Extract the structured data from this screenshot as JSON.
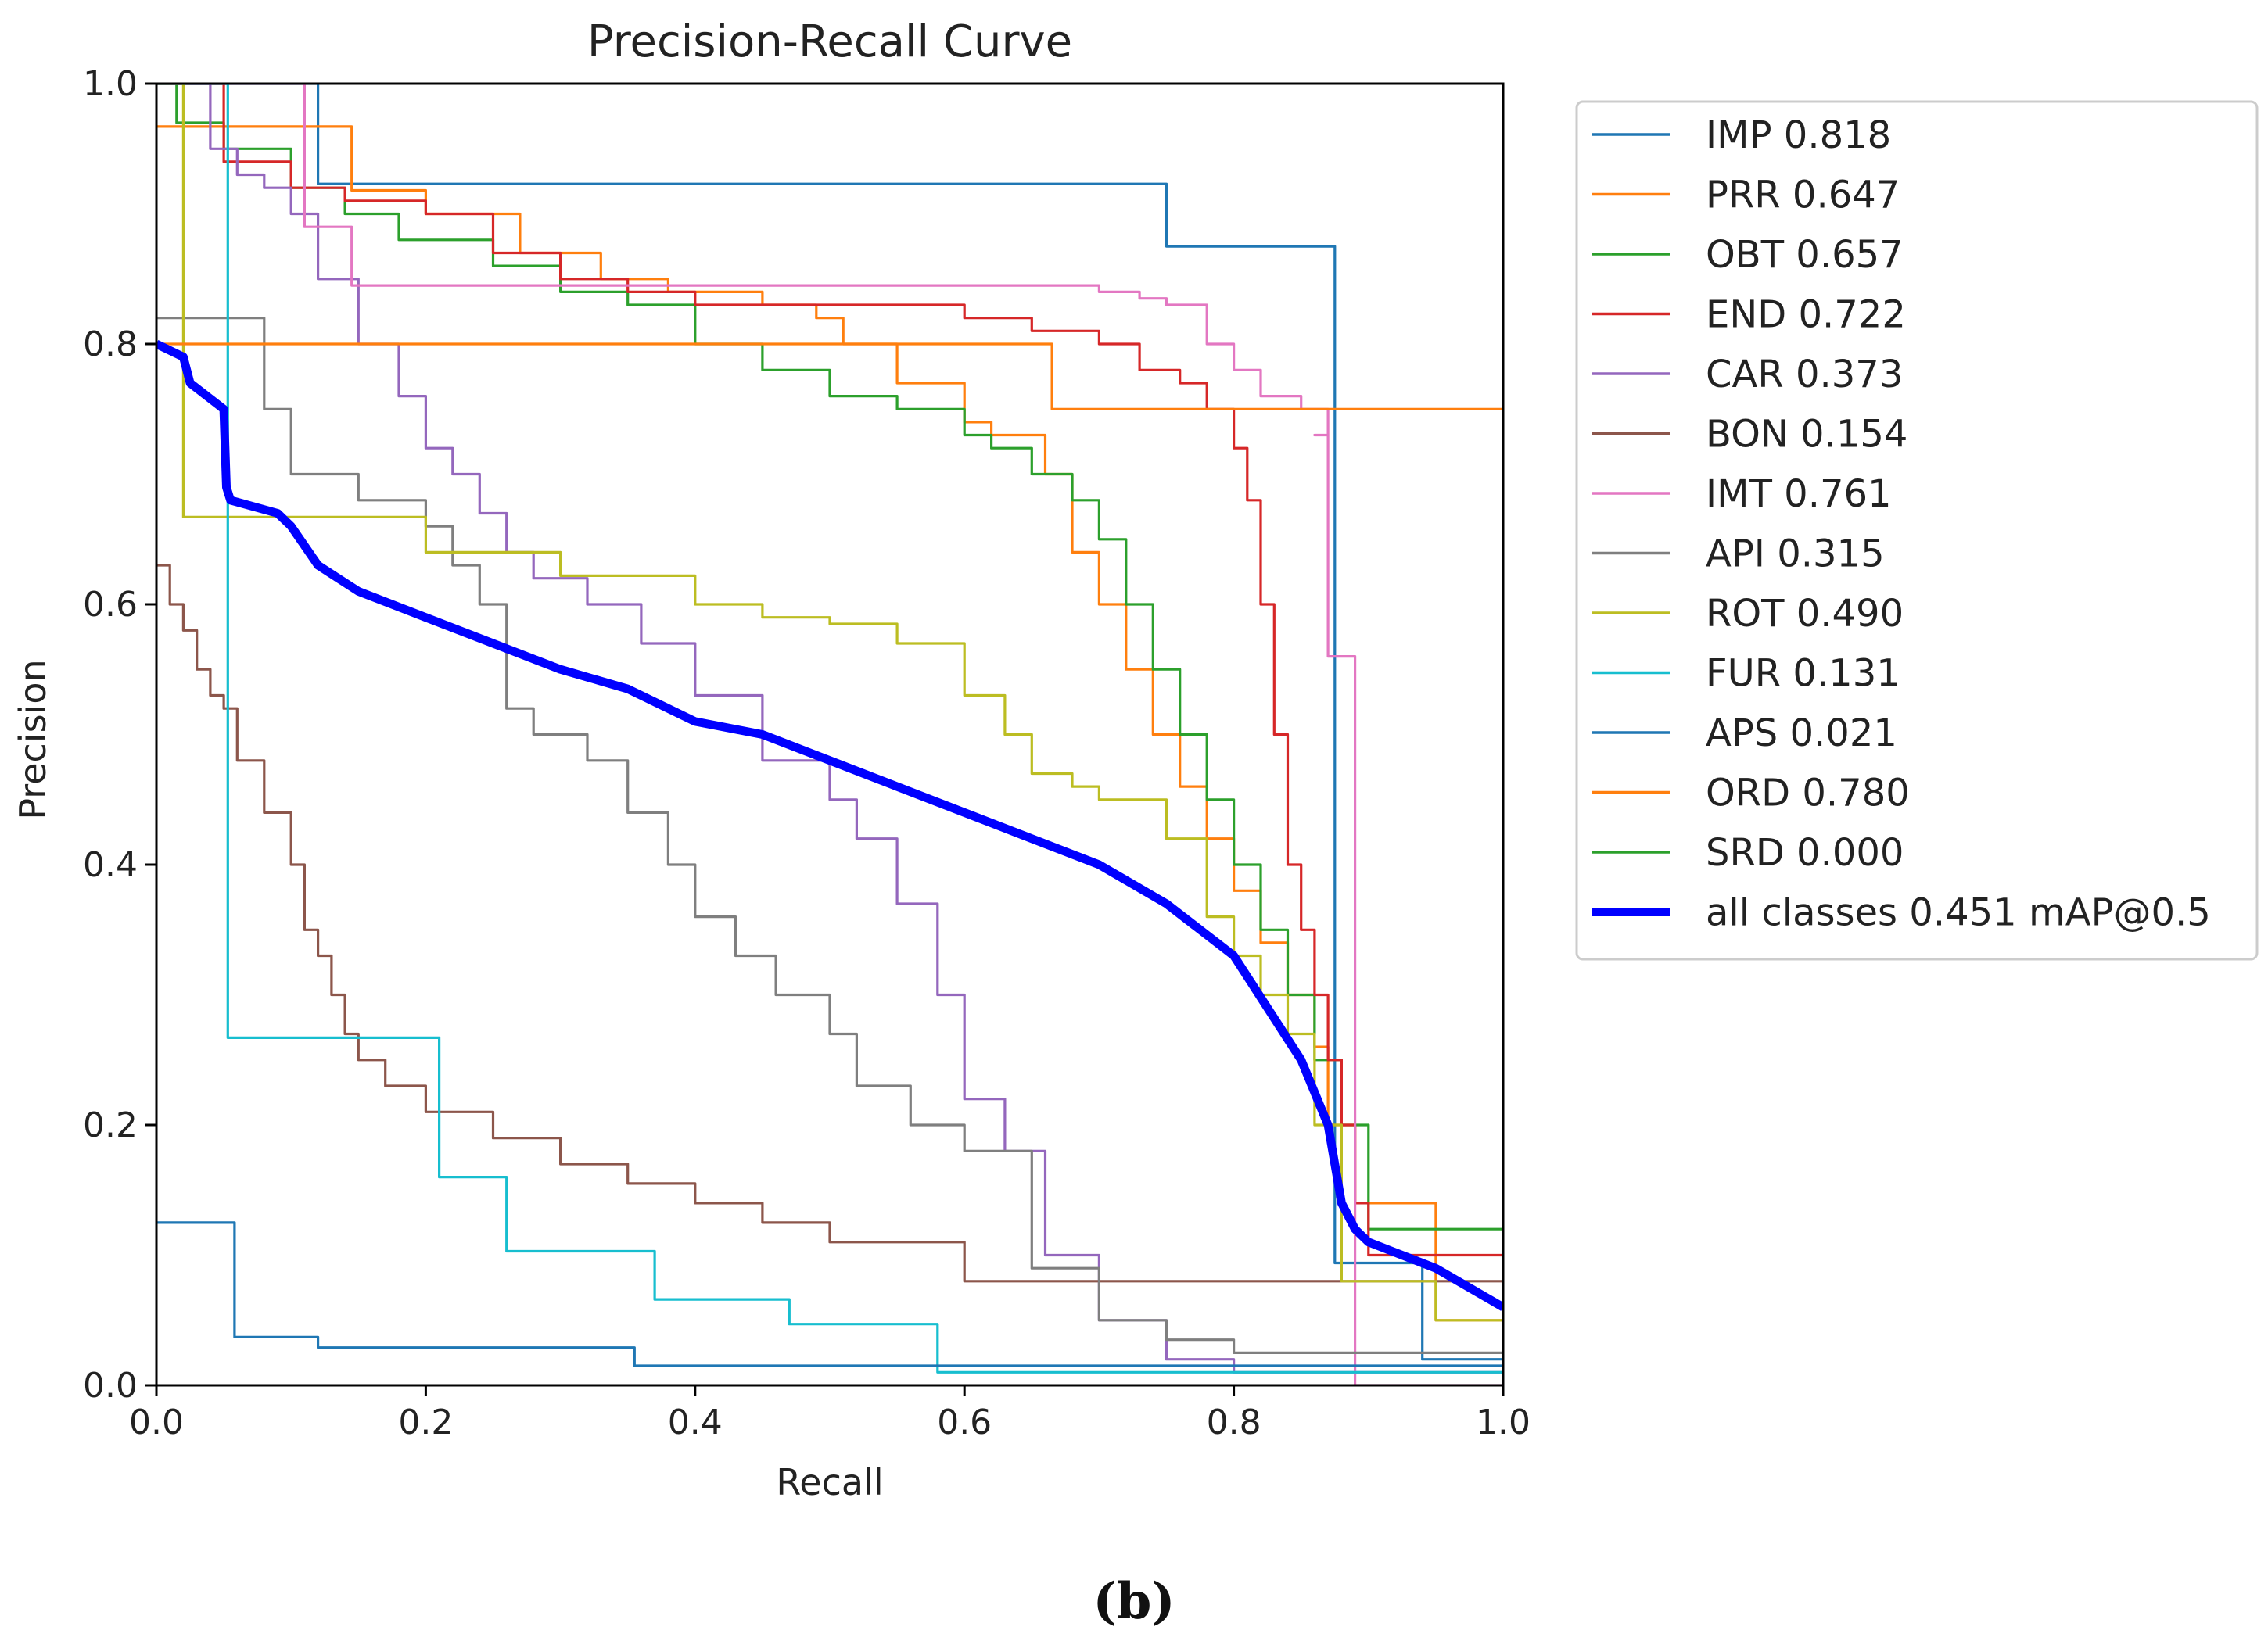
{
  "caption": "(b)",
  "chart_data": {
    "type": "line",
    "title": "Precision-Recall Curve",
    "xlabel": "Recall",
    "ylabel": "Precision",
    "xlim": [
      0,
      1
    ],
    "ylim": [
      0,
      1
    ],
    "xticks": [
      "0.0",
      "0.2",
      "0.4",
      "0.6",
      "0.8",
      "1.0"
    ],
    "yticks": [
      "0.0",
      "0.2",
      "0.4",
      "0.6",
      "0.8",
      "1.0"
    ],
    "grid": false,
    "legend_position": "outside-right",
    "series": [
      {
        "name": "IMP 0.818",
        "color": "#1f77b4",
        "step": true,
        "x": [
          0,
          0.12,
          0.12,
          0.75,
          0.75,
          0.875,
          0.875,
          0.94,
          0.94,
          1.0
        ],
        "y": [
          1.0,
          1.0,
          0.923,
          0.923,
          0.875,
          0.875,
          0.094,
          0.094,
          0.02,
          0.0
        ]
      },
      {
        "name": "PRR 0.647",
        "color": "#ff7f0e",
        "step": true,
        "x": [
          0,
          0.145,
          0.145,
          0.2,
          0.27,
          0.33,
          0.38,
          0.45,
          0.49,
          0.51,
          0.55,
          0.6,
          0.62,
          0.66,
          0.68,
          0.7,
          0.72,
          0.74,
          0.76,
          0.78,
          0.8,
          0.82,
          0.84,
          0.86,
          0.87,
          0.89,
          0.95,
          1.0
        ],
        "y": [
          0.967,
          0.967,
          0.918,
          0.9,
          0.87,
          0.85,
          0.84,
          0.83,
          0.82,
          0.8,
          0.77,
          0.74,
          0.73,
          0.7,
          0.64,
          0.6,
          0.55,
          0.5,
          0.46,
          0.42,
          0.38,
          0.34,
          0.3,
          0.26,
          0.2,
          0.14,
          0.05,
          0.0
        ]
      },
      {
        "name": "OBT 0.657",
        "color": "#2ca02c",
        "step": true,
        "x": [
          0,
          0.015,
          0.015,
          0.05,
          0.1,
          0.14,
          0.18,
          0.25,
          0.3,
          0.35,
          0.4,
          0.45,
          0.5,
          0.55,
          0.6,
          0.62,
          0.65,
          0.68,
          0.7,
          0.72,
          0.74,
          0.76,
          0.78,
          0.8,
          0.82,
          0.84,
          0.86,
          0.88,
          0.9,
          1.0
        ],
        "y": [
          1.0,
          1.0,
          0.97,
          0.95,
          0.92,
          0.9,
          0.88,
          0.86,
          0.84,
          0.83,
          0.8,
          0.78,
          0.76,
          0.75,
          0.73,
          0.72,
          0.7,
          0.68,
          0.65,
          0.6,
          0.55,
          0.5,
          0.45,
          0.4,
          0.35,
          0.3,
          0.25,
          0.2,
          0.12,
          0.0
        ]
      },
      {
        "name": "END 0.722",
        "color": "#d62728",
        "step": true,
        "x": [
          0,
          0.05,
          0.1,
          0.14,
          0.2,
          0.25,
          0.3,
          0.35,
          0.4,
          0.45,
          0.5,
          0.55,
          0.6,
          0.65,
          0.7,
          0.73,
          0.76,
          0.78,
          0.8,
          0.81,
          0.82,
          0.83,
          0.84,
          0.85,
          0.86,
          0.87,
          0.88,
          0.89,
          0.9,
          1.0
        ],
        "y": [
          1.0,
          0.94,
          0.92,
          0.91,
          0.9,
          0.87,
          0.85,
          0.84,
          0.83,
          0.83,
          0.83,
          0.83,
          0.82,
          0.81,
          0.8,
          0.78,
          0.77,
          0.75,
          0.72,
          0.68,
          0.6,
          0.5,
          0.4,
          0.35,
          0.3,
          0.25,
          0.2,
          0.14,
          0.1,
          0.0
        ]
      },
      {
        "name": "CAR 0.373",
        "color": "#9467bd",
        "step": true,
        "x": [
          0,
          0.04,
          0.06,
          0.08,
          0.1,
          0.12,
          0.15,
          0.18,
          0.2,
          0.22,
          0.24,
          0.26,
          0.28,
          0.32,
          0.36,
          0.4,
          0.45,
          0.5,
          0.52,
          0.55,
          0.58,
          0.6,
          0.63,
          0.66,
          0.7,
          0.75,
          0.8,
          1.0
        ],
        "y": [
          1.0,
          0.95,
          0.93,
          0.92,
          0.9,
          0.85,
          0.8,
          0.76,
          0.72,
          0.7,
          0.67,
          0.64,
          0.62,
          0.6,
          0.57,
          0.53,
          0.48,
          0.45,
          0.42,
          0.37,
          0.3,
          0.22,
          0.18,
          0.1,
          0.05,
          0.02,
          0.01,
          0.0
        ]
      },
      {
        "name": "BON 0.154",
        "color": "#8c564b",
        "step": true,
        "x": [
          0,
          0.01,
          0.02,
          0.03,
          0.04,
          0.05,
          0.06,
          0.08,
          0.1,
          0.11,
          0.12,
          0.13,
          0.14,
          0.15,
          0.17,
          0.2,
          0.25,
          0.3,
          0.35,
          0.4,
          0.45,
          0.5,
          0.6,
          1.0
        ],
        "y": [
          0.63,
          0.6,
          0.58,
          0.55,
          0.53,
          0.52,
          0.48,
          0.44,
          0.4,
          0.35,
          0.33,
          0.3,
          0.27,
          0.25,
          0.23,
          0.21,
          0.19,
          0.17,
          0.155,
          0.14,
          0.125,
          0.11,
          0.08,
          0.0
        ]
      },
      {
        "name": "IMT 0.761",
        "color": "#e377c2",
        "step": true,
        "x": [
          0,
          0.11,
          0.11,
          0.145,
          0.145,
          0.5,
          0.6,
          0.7,
          0.73,
          0.75,
          0.78,
          0.8,
          0.82,
          0.85,
          0.87,
          0.86,
          0.87,
          0.88,
          0.89,
          0.89,
          1.0
        ],
        "y": [
          1.0,
          1.0,
          0.89,
          0.89,
          0.845,
          0.845,
          0.845,
          0.84,
          0.835,
          0.83,
          0.8,
          0.78,
          0.76,
          0.75,
          0.73,
          0.73,
          0.56,
          0.56,
          0.52,
          0.0,
          0.0
        ]
      },
      {
        "name": "API 0.315",
        "color": "#7f7f7f",
        "step": true,
        "x": [
          0,
          0.08,
          0.08,
          0.1,
          0.15,
          0.2,
          0.22,
          0.24,
          0.26,
          0.28,
          0.3,
          0.32,
          0.35,
          0.38,
          0.4,
          0.43,
          0.46,
          0.5,
          0.52,
          0.56,
          0.6,
          0.65,
          0.7,
          0.75,
          0.8,
          1.0
        ],
        "y": [
          0.82,
          0.82,
          0.75,
          0.7,
          0.68,
          0.66,
          0.63,
          0.6,
          0.52,
          0.5,
          0.5,
          0.48,
          0.44,
          0.4,
          0.36,
          0.33,
          0.3,
          0.27,
          0.23,
          0.2,
          0.18,
          0.09,
          0.05,
          0.035,
          0.025,
          0.0
        ]
      },
      {
        "name": "ROT 0.490",
        "color": "#bcbd22",
        "step": true,
        "x": [
          0,
          0.02,
          0.02,
          0.2,
          0.2,
          0.3,
          0.4,
          0.45,
          0.5,
          0.55,
          0.6,
          0.63,
          0.65,
          0.68,
          0.7,
          0.73,
          0.75,
          0.78,
          0.8,
          0.82,
          0.84,
          0.86,
          0.88,
          0.95,
          1.0
        ],
        "y": [
          1.0,
          1.0,
          0.667,
          0.667,
          0.64,
          0.622,
          0.6,
          0.59,
          0.585,
          0.57,
          0.53,
          0.5,
          0.47,
          0.46,
          0.45,
          0.45,
          0.42,
          0.36,
          0.33,
          0.3,
          0.27,
          0.2,
          0.08,
          0.05,
          0.0
        ]
      },
      {
        "name": "FUR 0.131",
        "color": "#17becf",
        "step": true,
        "x": [
          0,
          0.053,
          0.053,
          0.21,
          0.21,
          0.26,
          0.26,
          0.37,
          0.37,
          0.47,
          0.47,
          0.58,
          0.58,
          1.0
        ],
        "y": [
          1.0,
          1.0,
          0.267,
          0.267,
          0.16,
          0.16,
          0.103,
          0.103,
          0.066,
          0.066,
          0.047,
          0.047,
          0.01,
          0.0
        ]
      },
      {
        "name": "APS 0.021",
        "color": "#1f77b4",
        "step": true,
        "x": [
          0,
          0.058,
          0.058,
          0.12,
          0.12,
          0.355,
          0.355,
          1.0
        ],
        "y": [
          0.125,
          0.125,
          0.037,
          0.037,
          0.029,
          0.029,
          0.015,
          0.0
        ]
      },
      {
        "name": "ORD 0.780",
        "color": "#ff7f0e",
        "step": true,
        "x": [
          0,
          0.665,
          0.665,
          1.0,
          1.0
        ],
        "y": [
          0.8,
          0.8,
          0.75,
          0.75,
          0.0
        ]
      },
      {
        "name": "SRD 0.000",
        "color": "#2ca02c",
        "step": true,
        "x": [],
        "y": []
      },
      {
        "name": "all classes 0.451 mAP@0.5",
        "color": "#0000ff",
        "step": false,
        "bold": true,
        "x": [
          0,
          0.02,
          0.025,
          0.05,
          0.052,
          0.055,
          0.09,
          0.1,
          0.12,
          0.15,
          0.2,
          0.25,
          0.3,
          0.35,
          0.4,
          0.45,
          0.5,
          0.55,
          0.6,
          0.65,
          0.7,
          0.75,
          0.8,
          0.85,
          0.87,
          0.88,
          0.89,
          0.9,
          0.95,
          1.0
        ],
        "y": [
          0.8,
          0.79,
          0.77,
          0.75,
          0.69,
          0.68,
          0.67,
          0.66,
          0.63,
          0.61,
          0.59,
          0.57,
          0.55,
          0.535,
          0.51,
          0.5,
          0.48,
          0.46,
          0.44,
          0.42,
          0.4,
          0.37,
          0.33,
          0.25,
          0.2,
          0.14,
          0.12,
          0.11,
          0.09,
          0.06
        ]
      }
    ]
  }
}
